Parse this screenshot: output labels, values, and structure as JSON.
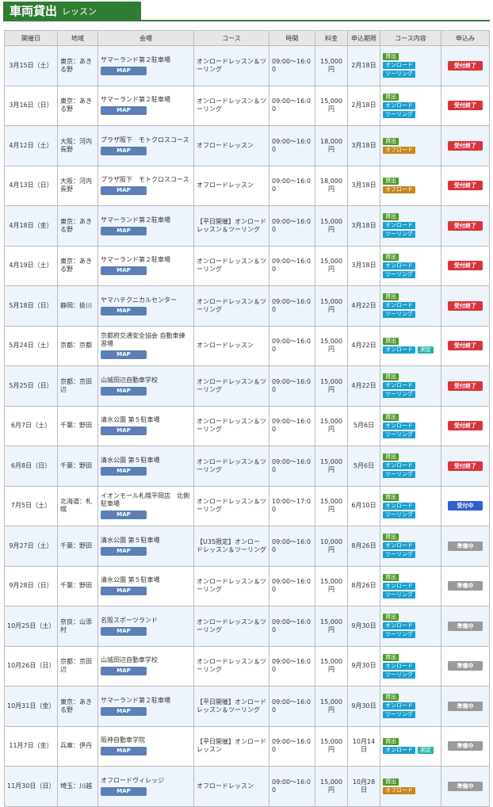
{
  "header": {
    "title": "車両貸出",
    "subtitle": "レッスン"
  },
  "map_button": "MAP",
  "table": {
    "columns": [
      "開催日",
      "地域",
      "会場",
      "コース",
      "時間",
      "料金",
      "申込期限",
      "コース内容",
      "申込み"
    ],
    "rows": [
      {
        "date": "3月15日（土）",
        "region": "東京：あきる野",
        "venue": "サマーランド第２駐車場",
        "course": "オンロードレッスン＆ツーリング",
        "time": "09:00～16:00",
        "fee": "15,000円",
        "deadline": "2月18日",
        "tags": [
          "貸出",
          "オンロード",
          "ツーリング"
        ],
        "status": "受付終了"
      },
      {
        "date": "3月16日（日）",
        "region": "東京：あきる野",
        "venue": "サマーランド第２駐車場",
        "course": "オンロードレッスン＆ツーリング",
        "time": "09:00～16:00",
        "fee": "15,000円",
        "deadline": "2月18日",
        "tags": [
          "貸出",
          "オンロード",
          "ツーリング"
        ],
        "status": "受付終了"
      },
      {
        "date": "4月12日（土）",
        "region": "大阪：河内長野",
        "venue": "プラザ阪下　モトクロスコース",
        "course": "オフロードレッスン",
        "time": "09:00～16:00",
        "fee": "18,000円",
        "deadline": "3月18日",
        "tags": [
          "貸出",
          "オフロード"
        ],
        "status": "受付終了"
      },
      {
        "date": "4月13日（日）",
        "region": "大阪：河内長野",
        "venue": "プラザ阪下　モトクロスコース",
        "course": "オフロードレッスン",
        "time": "09:00～16:00",
        "fee": "18,000円",
        "deadline": "3月18日",
        "tags": [
          "貸出",
          "オフロード"
        ],
        "status": "受付終了"
      },
      {
        "date": "4月18日（金）",
        "region": "東京：あきる野",
        "venue": "サマーランド第２駐車場",
        "course": "【平日開催】オンロードレッスン＆ツーリング",
        "time": "09:00～16:00",
        "fee": "15,000円",
        "deadline": "3月18日",
        "tags": [
          "貸出",
          "オンロード",
          "ツーリング"
        ],
        "status": "受付終了"
      },
      {
        "date": "4月19日（土）",
        "region": "東京：あきる野",
        "venue": "サマーランド第２駐車場",
        "course": "オンロードレッスン＆ツーリング",
        "time": "09:00～16:00",
        "fee": "15,000円",
        "deadline": "3月18日",
        "tags": [
          "貸出",
          "オンロード",
          "ツーリング"
        ],
        "status": "受付終了"
      },
      {
        "date": "5月18日（日）",
        "region": "静岡：掛川",
        "venue": "ヤマハテクニカルセンター",
        "course": "オンロードレッスン＆ツーリング",
        "time": "09:00～16:00",
        "fee": "15,000円",
        "deadline": "4月22日",
        "tags": [
          "貸出",
          "オンロード",
          "ツーリング"
        ],
        "status": "受付終了"
      },
      {
        "date": "5月24日（土）",
        "region": "京都：京都",
        "venue": "京都府交通安全協会 自動車練習場",
        "course": "オンロードレッスン",
        "time": "09:00～16:00",
        "fee": "15,000円",
        "deadline": "4月22日",
        "tags": [
          "貸出",
          "オンロード",
          "測定"
        ],
        "status": "受付終了"
      },
      {
        "date": "5月25日（日）",
        "region": "京都：京田辺",
        "venue": "山城田辺自動車学校",
        "course": "オンロードレッスン＆ツーリング",
        "time": "09:00～16:00",
        "fee": "15,000円",
        "deadline": "4月22日",
        "tags": [
          "貸出",
          "オンロード",
          "ツーリング"
        ],
        "status": "受付終了"
      },
      {
        "date": "6月7日（土）",
        "region": "千葉：野田",
        "venue": "清水公園 第５駐車場",
        "course": "オンロードレッスン＆ツーリング",
        "time": "09:00～16:00",
        "fee": "15,000円",
        "deadline": "5月6日",
        "tags": [
          "貸出",
          "オンロード",
          "ツーリング"
        ],
        "status": "受付終了"
      },
      {
        "date": "6月8日（日）",
        "region": "千葉：野田",
        "venue": "清水公園 第５駐車場",
        "course": "オンロードレッスン＆ツーリング",
        "time": "09:00～16:00",
        "fee": "15,000円",
        "deadline": "5月6日",
        "tags": [
          "貸出",
          "オンロード",
          "ツーリング"
        ],
        "status": "受付終了"
      },
      {
        "date": "7月5日（土）",
        "region": "北海道：札幌",
        "venue": "イオンモール札幌平岡店　北側駐車場",
        "course": "オンロードレッスン＆ツーリング",
        "time": "10:00～17:00",
        "fee": "15,000円",
        "deadline": "6月10日",
        "tags": [
          "貸出",
          "オンロード",
          "ツーリング"
        ],
        "status": "受付中"
      },
      {
        "date": "9月27日（土）",
        "region": "千葉：野田",
        "venue": "清水公園 第５駐車場",
        "course": "【U35限定】オンロードレッスン＆ツーリング",
        "time": "09:00～16:00",
        "fee": "10,000円",
        "deadline": "8月26日",
        "tags": [
          "貸出",
          "オンロード",
          "ツーリング"
        ],
        "status": "準備中"
      },
      {
        "date": "9月28日（日）",
        "region": "千葉：野田",
        "venue": "清水公園 第５駐車場",
        "course": "オンロードレッスン＆ツーリング",
        "time": "09:00～16:00",
        "fee": "15,000円",
        "deadline": "8月26日",
        "tags": [
          "貸出",
          "オンロード",
          "ツーリング"
        ],
        "status": "準備中"
      },
      {
        "date": "10月25日（土）",
        "region": "奈良：山添村",
        "venue": "名阪スポーツランド",
        "course": "オンロードレッスン＆ツーリング",
        "time": "09:00～16:00",
        "fee": "15,000円",
        "deadline": "9月30日",
        "tags": [
          "貸出",
          "オンロード",
          "ツーリング"
        ],
        "status": "準備中"
      },
      {
        "date": "10月26日（日）",
        "region": "京都：京田辺",
        "venue": "山城田辺自動車学校",
        "course": "オンロードレッスン＆ツーリング",
        "time": "09:00～16:00",
        "fee": "15,000円",
        "deadline": "9月30日",
        "tags": [
          "貸出",
          "オンロード",
          "ツーリング"
        ],
        "status": "準備中"
      },
      {
        "date": "10月31日（金）",
        "region": "東京：あきる野",
        "venue": "サマーランド第２駐車場",
        "course": "【平日開催】オンロードレッスン＆ツーリング",
        "time": "09:00～16:00",
        "fee": "15,000円",
        "deadline": "9月30日",
        "tags": [
          "貸出",
          "オンロード",
          "ツーリング"
        ],
        "status": "準備中"
      },
      {
        "date": "11月7日（金）",
        "region": "兵庫：伊丹",
        "venue": "阪神自動車学院",
        "course": "【平日開催】オンロードレッスン",
        "time": "09:00～16:00",
        "fee": "15,000円",
        "deadline": "10月14日",
        "tags": [
          "貸出",
          "オンロード",
          "測定"
        ],
        "status": "準備中"
      },
      {
        "date": "11月30日（日）",
        "region": "埼玉：川越",
        "venue": "オフロードヴィレッジ",
        "course": "オフロードレッスン",
        "time": "09:00～16:00",
        "fee": "15,000円",
        "deadline": "10月28日",
        "tags": [
          "貸出",
          "オフロード"
        ],
        "status": "準備中"
      }
    ]
  }
}
